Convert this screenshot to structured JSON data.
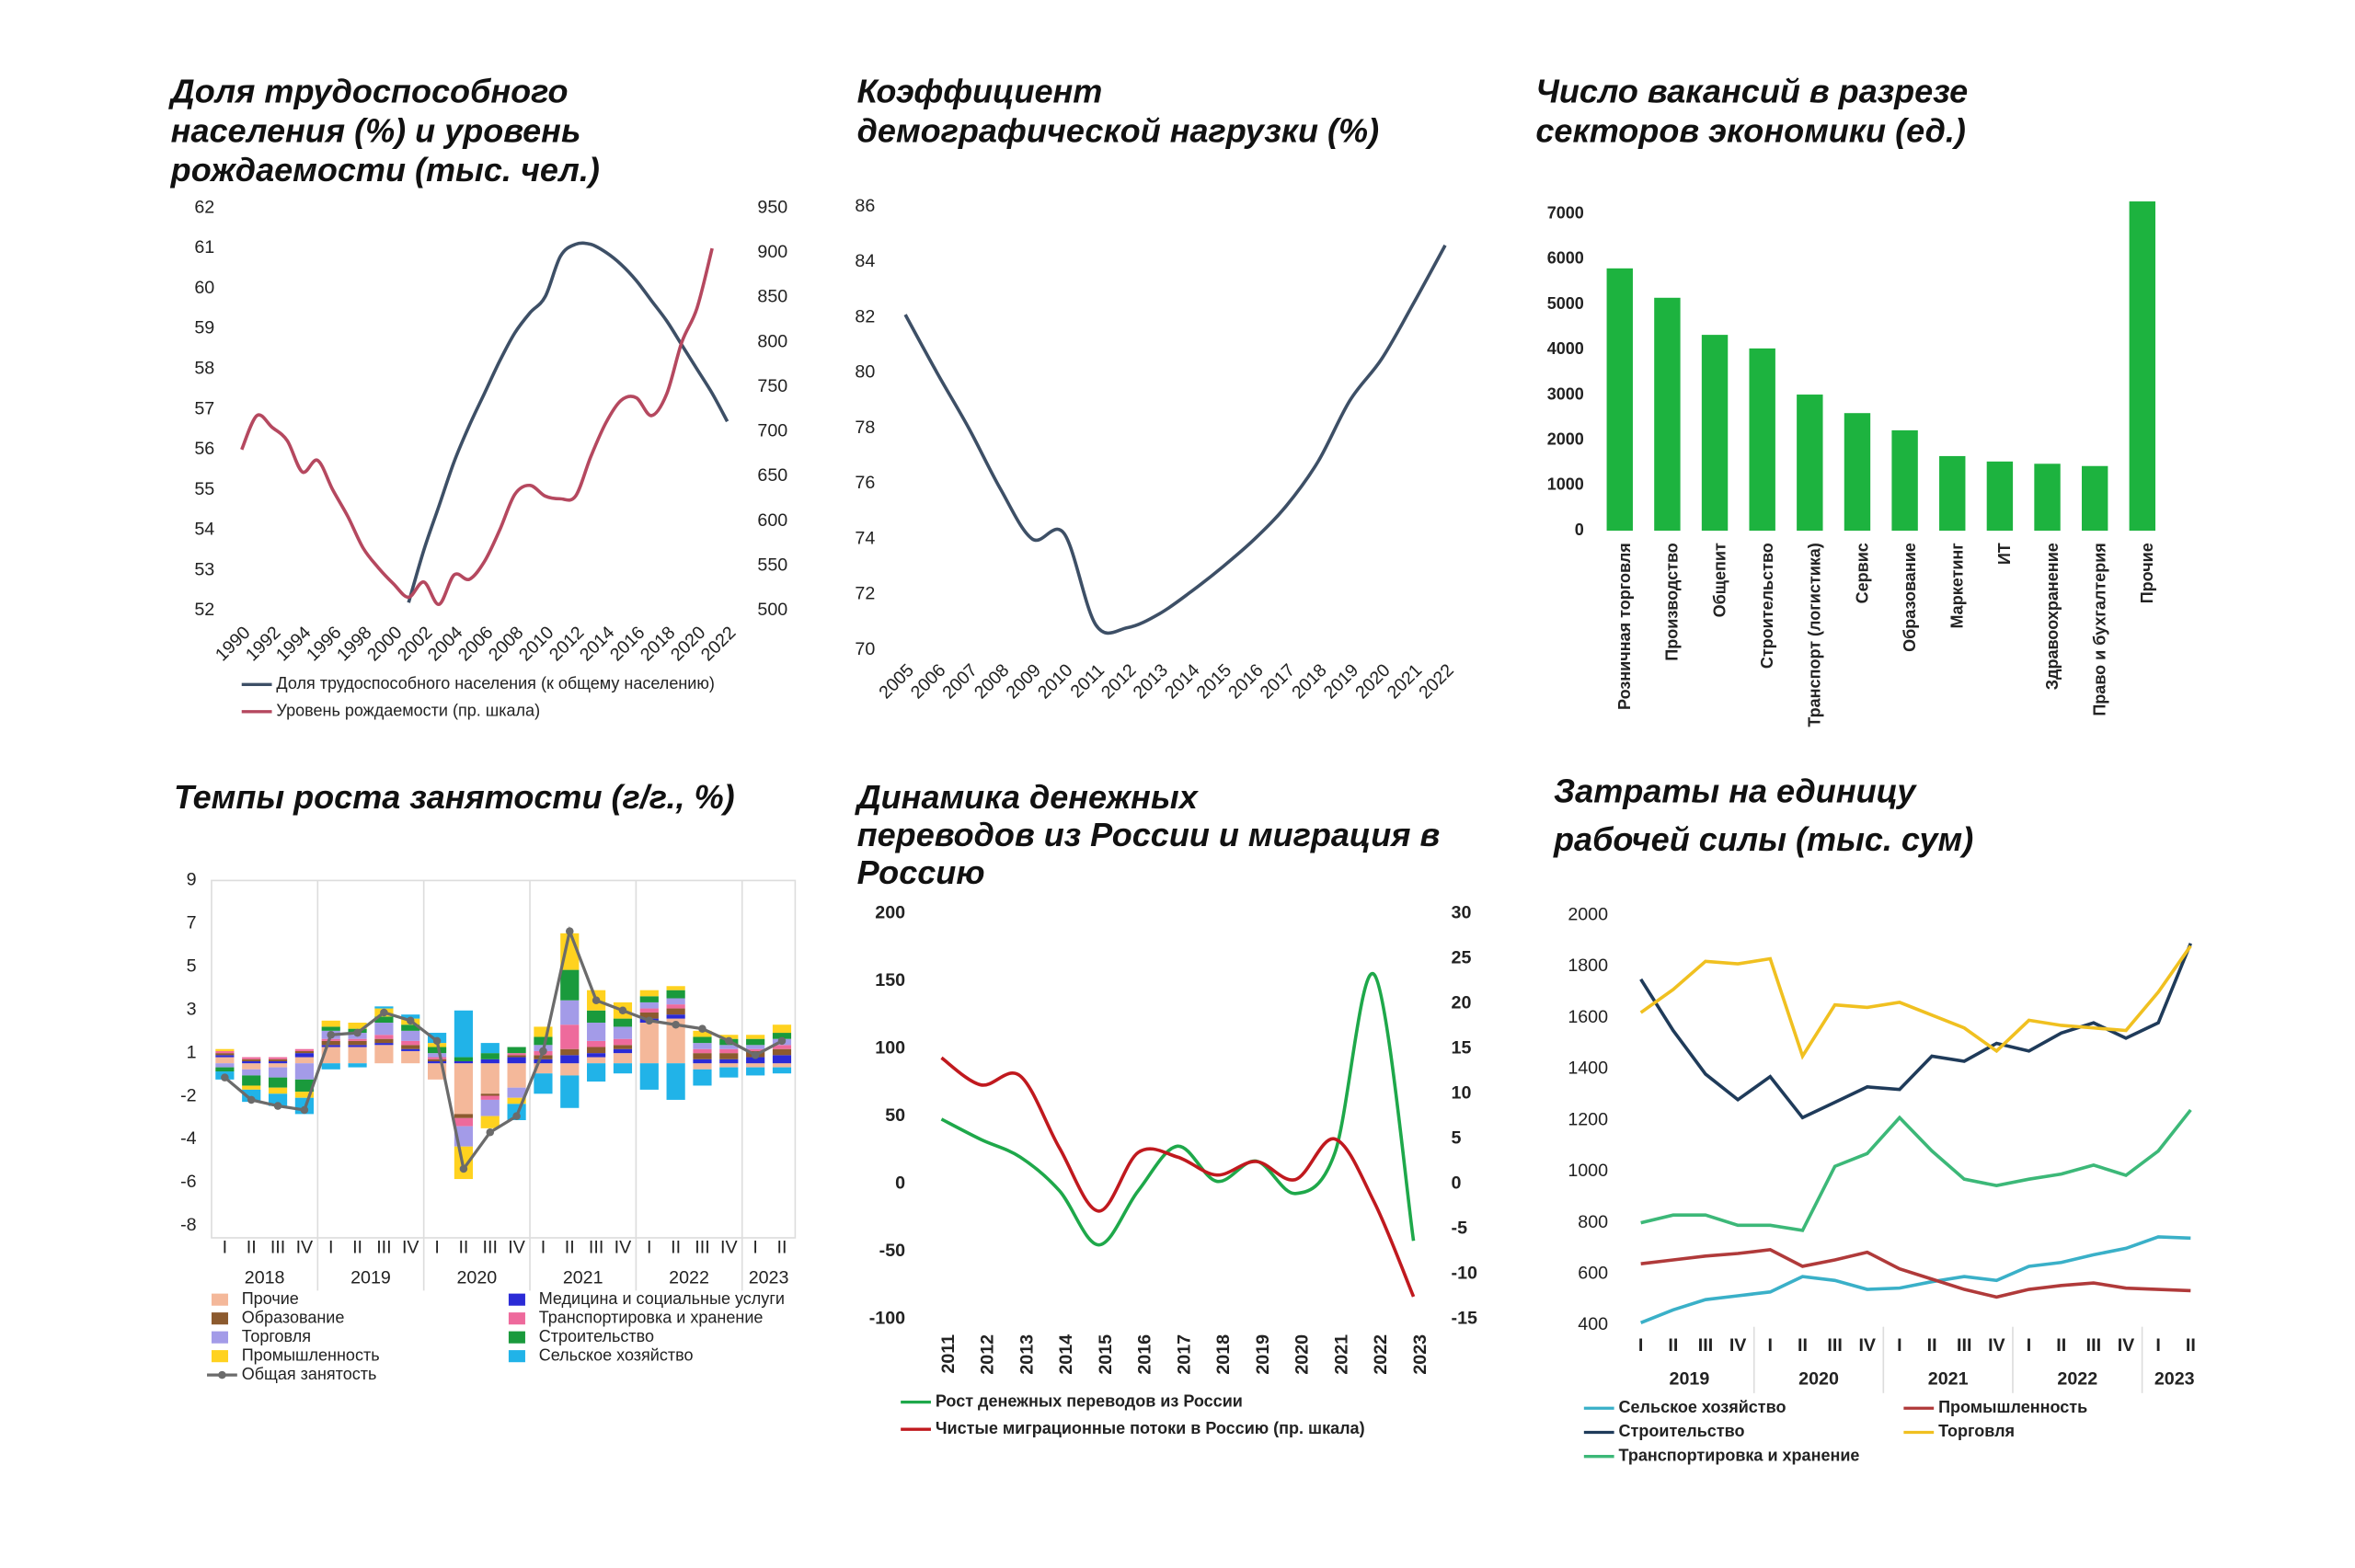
{
  "chart_data": [
    {
      "type": "line",
      "title": "Доля трудоспособного населения (%) и уровень рождаемости (тыс. чел.)",
      "x": [
        1990,
        1991,
        1992,
        1993,
        1994,
        1995,
        1996,
        1997,
        1998,
        1999,
        2000,
        2001,
        2002,
        2003,
        2004,
        2005,
        2006,
        2007,
        2008,
        2009,
        2010,
        2011,
        2012,
        2013,
        2014,
        2015,
        2016,
        2017,
        2018,
        2019,
        2020,
        2021,
        2022
      ],
      "xlim": [
        1990,
        2022
      ],
      "xticks": [
        1990,
        1992,
        1994,
        1996,
        1998,
        2000,
        2002,
        2004,
        2006,
        2008,
        2010,
        2012,
        2014,
        2016,
        2018,
        2020,
        2022
      ],
      "ylim": [
        52,
        62
      ],
      "yticks": [
        52,
        53,
        54,
        55,
        56,
        57,
        58,
        59,
        60,
        61,
        62
      ],
      "y2lim": [
        500,
        950
      ],
      "y2ticks": [
        500,
        550,
        600,
        650,
        700,
        750,
        800,
        850,
        900,
        950
      ],
      "series": [
        {
          "name": "Доля трудоспособного населения (к общему населению)",
          "color": "#3d4f66",
          "values": [
            null,
            null,
            null,
            null,
            null,
            null,
            null,
            null,
            null,
            null,
            null,
            52.2,
            53.5,
            54.6,
            55.7,
            56.6,
            57.4,
            58.2,
            58.9,
            59.4,
            59.8,
            60.8,
            61.1,
            61.1,
            60.9,
            60.6,
            60.2,
            59.7,
            59.2,
            58.6,
            58.0,
            57.4,
            56.7
          ]
        },
        {
          "name": "Уровень рождаемости (пр. шкала)",
          "color": "#b5485f",
          "axis": "y2",
          "values": [
            680,
            718,
            705,
            690,
            655,
            668,
            635,
            605,
            570,
            548,
            530,
            515,
            532,
            507,
            540,
            535,
            555,
            590,
            630,
            640,
            628,
            625,
            628,
            672,
            710,
            735,
            738,
            718,
            742,
            800,
            838,
            905,
            null
          ]
        }
      ],
      "legend": "bottom"
    },
    {
      "type": "line",
      "title": "Коэффициент демографической нагрузки (%)",
      "x": [
        2005,
        2006,
        2007,
        2008,
        2009,
        2010,
        2011,
        2012,
        2013,
        2014,
        2015,
        2016,
        2017,
        2018,
        2019,
        2020,
        2021,
        2022
      ],
      "xlim": [
        2005,
        2022
      ],
      "xticks": [
        2005,
        2006,
        2007,
        2008,
        2009,
        2010,
        2011,
        2012,
        2013,
        2014,
        2015,
        2016,
        2017,
        2018,
        2019,
        2020,
        2021,
        2022
      ],
      "ylim": [
        70,
        86
      ],
      "yticks": [
        70,
        72,
        74,
        76,
        78,
        80,
        82,
        84,
        86
      ],
      "series": [
        {
          "color": "#3d4f66",
          "values": [
            82.1,
            80.0,
            78.0,
            75.8,
            74.0,
            74.2,
            70.9,
            70.8,
            71.3,
            72.1,
            73.0,
            74.0,
            75.2,
            76.8,
            79.0,
            80.5,
            82.5,
            84.6
          ]
        }
      ]
    },
    {
      "type": "bar",
      "title": "Число вакансий в разрезе секторов экономики (ед.)",
      "categories": [
        "Розничная торговля",
        "Производство",
        "Общепит",
        "Строительство",
        "Транспорт (логистика)",
        "Сервис",
        "Образование",
        "Маркетинг",
        "ИТ",
        "Здравоохранение",
        "Право и бухгалтерия",
        "Прочие"
      ],
      "values": [
        5800,
        5150,
        4330,
        4030,
        3010,
        2600,
        2220,
        1650,
        1530,
        1480,
        1430,
        7280
      ],
      "color": "#1db33f",
      "ylim": [
        0,
        7400
      ],
      "yticks": [
        0,
        1000,
        2000,
        3000,
        4000,
        5000,
        6000,
        7000
      ]
    },
    {
      "type": "combo",
      "title": "Темпы роста занятости (г/г., %)",
      "categories": [
        "I",
        "II",
        "III",
        "IV",
        "I",
        "II",
        "III",
        "IV",
        "I",
        "II",
        "III",
        "IV",
        "I",
        "II",
        "III",
        "IV",
        "I",
        "II",
        "III",
        "IV",
        "I",
        "II"
      ],
      "years": [
        "2018",
        "2019",
        "2020",
        "2021",
        "2022",
        "2023"
      ],
      "ylim": [
        -8,
        9
      ],
      "yticks": [
        -8,
        {
          "value": -5.875,
          "label": "-6"
        },
        {
          "value": -3.75,
          "label": "-4"
        },
        {
          "value": -1.625,
          "label": "-2"
        },
        {
          "value": 0.5,
          "label": "1"
        },
        {
          "value": 2.625,
          "label": "3"
        },
        {
          "value": 4.75,
          "label": "5"
        },
        {
          "value": 6.875,
          "label": "7"
        },
        9
      ],
      "series": [
        {
          "name": "Прочие",
          "color": "#f4b89a",
          "values": [
            0.3,
            -0.3,
            -0.2,
            0.3,
            0.8,
            0.8,
            0.9,
            0.6,
            -0.8,
            -2.5,
            -1.5,
            -1.2,
            -0.5,
            -0.6,
            0.3,
            0.5,
            2.0,
            2.2,
            -0.3,
            -0.2,
            -0.2,
            -0.2
          ]
        },
        {
          "name": "Медицина и социальные услуги",
          "color": "#2b2bd6",
          "values": [
            0.1,
            0.1,
            0.1,
            0.2,
            0.1,
            0.1,
            0.1,
            0.1,
            0.1,
            0.1,
            0.2,
            0.3,
            0.2,
            0.4,
            0.2,
            0.2,
            0.2,
            0.2,
            0.2,
            0.2,
            0.3,
            0.4
          ]
        },
        {
          "name": "Образование",
          "color": "#8c5a2e",
          "values": [
            0.1,
            0.1,
            0.1,
            0.1,
            0.2,
            0.2,
            0.2,
            0.2,
            0.1,
            -0.2,
            -0.1,
            0.1,
            0.2,
            0.3,
            0.3,
            0.2,
            0.3,
            0.3,
            0.3,
            0.3,
            0.3,
            0.3
          ]
        },
        {
          "name": "Транспортировка и хранение",
          "color": "#ee6a9c",
          "values": [
            0.1,
            0.1,
            0.1,
            0.1,
            0.1,
            0.1,
            0.2,
            0.2,
            0.1,
            -0.4,
            -0.2,
            0.1,
            0.2,
            1.2,
            0.3,
            0.3,
            0.2,
            0.2,
            0.2,
            0.2,
            0.1,
            0.2
          ]
        },
        {
          "name": "Торговля",
          "color": "#a39be8",
          "values": [
            -0.2,
            -0.3,
            -0.5,
            -0.8,
            0.4,
            0.3,
            0.6,
            0.5,
            0.2,
            -1.0,
            -0.8,
            -0.5,
            0.3,
            1.2,
            0.9,
            0.6,
            0.3,
            0.3,
            0.3,
            0.2,
            0.2,
            0.3
          ]
        },
        {
          "name": "Строительство",
          "color": "#1a9a3c",
          "values": [
            -0.2,
            -0.5,
            -0.5,
            -0.6,
            0.2,
            0.2,
            0.3,
            0.3,
            0.3,
            0.2,
            0.3,
            0.3,
            0.4,
            1.5,
            0.6,
            0.4,
            0.3,
            0.4,
            0.3,
            0.3,
            0.3,
            0.3
          ]
        },
        {
          "name": "Промышленность",
          "color": "#ffd21f",
          "values": [
            0.1,
            -0.2,
            -0.3,
            -0.3,
            0.3,
            0.3,
            0.4,
            0.3,
            0.2,
            -1.6,
            -0.6,
            -0.3,
            0.5,
            1.8,
            1.0,
            0.8,
            0.3,
            0.2,
            0.3,
            0.2,
            0.2,
            0.4
          ]
        },
        {
          "name": "Сельское хозяйство",
          "color": "#21b3e8",
          "values": [
            -0.4,
            -0.6,
            -0.6,
            -0.8,
            -0.3,
            -0.2,
            0.1,
            0.2,
            0.5,
            2.3,
            0.5,
            -0.8,
            -1.0,
            -1.6,
            -0.9,
            -0.5,
            -1.3,
            -1.8,
            -0.8,
            -0.5,
            -0.4,
            -0.3
          ]
        },
        {
          "name": "Общая занятость",
          "color": "#6b6b6b",
          "type": "line",
          "values": [
            -0.7,
            -1.8,
            -2.1,
            -2.3,
            1.4,
            1.5,
            2.5,
            2.1,
            1.1,
            -5.2,
            -3.4,
            -2.6,
            0.6,
            6.5,
            3.1,
            2.6,
            2.1,
            1.9,
            1.7,
            1.1,
            0.4,
            1.1
          ]
        }
      ],
      "legend": "bottom"
    },
    {
      "type": "line",
      "title": "Динамика денежных переводов из России и миграция в Россию",
      "x": [
        2011,
        2012,
        2013,
        2014,
        2015,
        2016,
        2017,
        2018,
        2019,
        2020,
        2021,
        2022,
        2023
      ],
      "xlim": [
        2011,
        2023
      ],
      "xticks": [
        2011,
        2012,
        2013,
        2014,
        2015,
        2016,
        2017,
        2018,
        2019,
        2020,
        2021,
        2022,
        2023
      ],
      "ylim": [
        -100,
        200
      ],
      "yticks": [
        -100,
        -50,
        0,
        50,
        100,
        150,
        200
      ],
      "y2lim": [
        -15,
        30
      ],
      "y2ticks": [
        -15,
        -10,
        -5,
        0,
        5,
        10,
        15,
        20,
        25,
        30
      ],
      "series": [
        {
          "name": "Рост денежных переводов из России",
          "color": "#1ea84a",
          "values": [
            48,
            33,
            20,
            -5,
            -45,
            -5,
            28,
            2,
            17,
            -7,
            23,
            155,
            -42
          ]
        },
        {
          "name": "Чистые миграционные потоки в Россию (пр. шкала)",
          "color": "#c0191e",
          "axis": "y2",
          "values": [
            14,
            11,
            12,
            4,
            -3,
            3.5,
            3,
            1,
            2.5,
            0.5,
            5,
            -2,
            -12.5
          ]
        }
      ],
      "legend": "bottom"
    },
    {
      "type": "line",
      "title": "Затраты на единицу рабочей силы (тыс. сум)",
      "categories": [
        "I",
        "II",
        "III",
        "IV",
        "I",
        "II",
        "III",
        "IV",
        "I",
        "II",
        "III",
        "IV",
        "I",
        "II",
        "III",
        "IV",
        "I",
        "II"
      ],
      "years": [
        "2019",
        "2020",
        "2021",
        "2022",
        "2023"
      ],
      "ylim": [
        400,
        2000
      ],
      "yticks": [
        400,
        600,
        800,
        1000,
        1200,
        1400,
        1600,
        1800,
        2000
      ],
      "series": [
        {
          "name": "Сельское хозяйство",
          "color": "#3ab0c8",
          "values": [
            410,
            460,
            500,
            515,
            530,
            590,
            575,
            540,
            545,
            570,
            590,
            575,
            630,
            645,
            675,
            700,
            745,
            740
          ]
        },
        {
          "name": "Промышленность",
          "color": "#b03a3a",
          "values": [
            640,
            655,
            670,
            680,
            695,
            630,
            655,
            685,
            620,
            580,
            540,
            510,
            540,
            555,
            565,
            545,
            540,
            535
          ]
        },
        {
          "name": "Строительство",
          "color": "#1f3b5a",
          "values": [
            1750,
            1550,
            1380,
            1280,
            1370,
            1210,
            1270,
            1330,
            1320,
            1450,
            1430,
            1500,
            1470,
            1540,
            1580,
            1520,
            1580,
            1890
          ]
        },
        {
          "name": "Торговля",
          "color": "#f0c020",
          "values": [
            1620,
            1710,
            1820,
            1810,
            1830,
            1450,
            1650,
            1640,
            1660,
            1610,
            1560,
            1470,
            1590,
            1570,
            1560,
            1550,
            1700,
            1880
          ]
        },
        {
          "name": "Транспортировка и хранение",
          "color": "#3cb878",
          "values": [
            800,
            830,
            830,
            790,
            790,
            770,
            1020,
            1070,
            1210,
            1080,
            970,
            945,
            970,
            990,
            1025,
            985,
            1080,
            1240
          ]
        }
      ],
      "legend": "bottom"
    }
  ]
}
